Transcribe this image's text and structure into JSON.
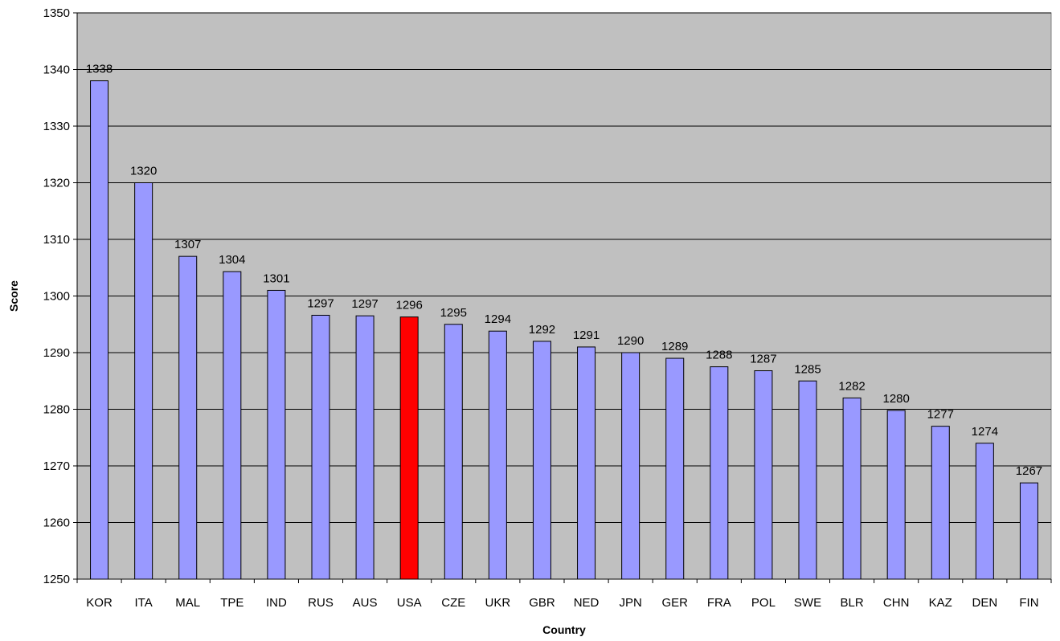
{
  "chart_data": {
    "type": "bar",
    "title": "",
    "xlabel": "Country",
    "ylabel": "Score",
    "ylim": [
      1250,
      1350
    ],
    "yticks": [
      1250,
      1260,
      1270,
      1280,
      1290,
      1300,
      1310,
      1320,
      1330,
      1340,
      1350
    ],
    "grid": true,
    "legend": "none",
    "categories": [
      "KOR",
      "ITA",
      "MAL",
      "TPE",
      "IND",
      "RUS",
      "AUS",
      "USA",
      "CZE",
      "UKR",
      "GBR",
      "NED",
      "JPN",
      "GER",
      "FRA",
      "POL",
      "SWE",
      "BLR",
      "CHN",
      "KAZ",
      "DEN",
      "FIN"
    ],
    "values": [
      1338,
      1320,
      1307,
      1304.3,
      1301,
      1296.6,
      1296.5,
      1296.3,
      1295,
      1293.8,
      1292,
      1291,
      1290,
      1289,
      1287.5,
      1286.8,
      1285,
      1282,
      1279.8,
      1277,
      1274,
      1267
    ],
    "data_labels": [
      "1338",
      "1320",
      "1307",
      "1304",
      "1301",
      "1297",
      "1297",
      "1296",
      "1295",
      "1294",
      "1292",
      "1291",
      "1290",
      "1289",
      "1288",
      "1287",
      "1285",
      "1282",
      "1280",
      "1277",
      "1274",
      "1267"
    ],
    "highlight_category": "USA",
    "colors": {
      "bar": "#9999ff",
      "highlight": "#ff0000",
      "plot_background": "#c0c0c0",
      "gridline": "#000000",
      "bar_border": "#000000"
    }
  }
}
